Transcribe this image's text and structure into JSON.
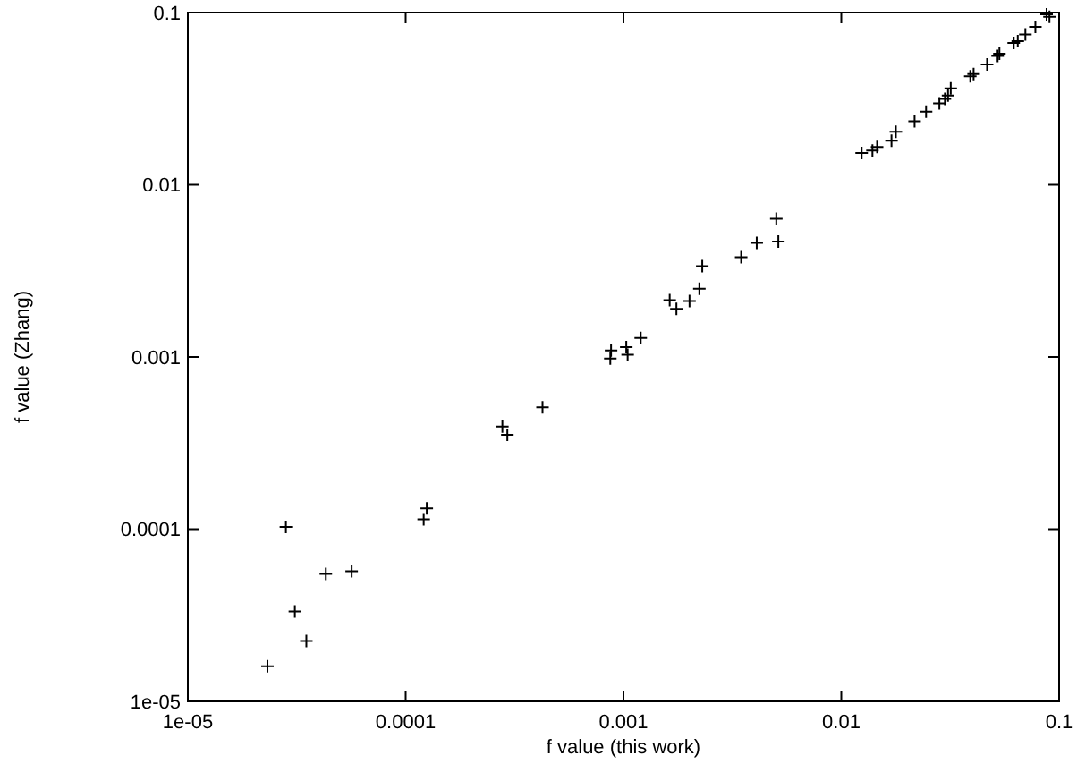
{
  "chart_data": {
    "type": "scatter",
    "xlabel": "f value (this work)",
    "ylabel": "f value (Zhang)",
    "log": "xy",
    "grid": false,
    "marker": "cross",
    "xlim": [
      1e-05,
      0.1
    ],
    "ylim": [
      1e-05,
      0.1
    ],
    "xticks": [
      {
        "value": 1e-05,
        "label": "1e-05"
      },
      0.0001,
      0.001,
      0.01,
      0.1
    ],
    "yticks": [
      {
        "value": 1e-05,
        "label": "1e-05"
      },
      0.0001,
      0.001,
      0.01,
      0.1
    ],
    "series": [
      {
        "color": "#000000",
        "x": [
          2.82e-05,
          3.1e-05,
          3.5e-05,
          2.32e-05,
          4.3e-05,
          5.65e-05,
          0.000121,
          0.000125,
          0.000278,
          0.000293,
          0.000425,
          0.000877,
          0.00087,
          0.00103,
          0.001045,
          0.0012,
          0.00163,
          0.00175,
          0.00201,
          0.00223,
          0.0023,
          0.00347,
          0.00409,
          0.00503,
          0.00514,
          0.0124,
          0.0139,
          0.0146,
          0.017,
          0.0178,
          0.0217,
          0.0245,
          0.0282,
          0.0299,
          0.0309,
          0.0318,
          0.0391,
          0.0405,
          0.0467,
          0.0522,
          0.0532,
          0.0619,
          0.0646,
          0.07,
          0.0778,
          0.0876,
          0.0903
        ],
        "values": [
          0.000103,
          3.33e-05,
          2.24e-05,
          1.6e-05,
          5.5e-05,
          5.7e-05,
          0.000114,
          0.000132,
          0.000395,
          0.000353,
          0.00051,
          0.00109,
          0.00098,
          0.00114,
          0.00103,
          0.00129,
          0.00214,
          0.0019,
          0.00211,
          0.00249,
          0.00337,
          0.0038,
          0.0046,
          0.00634,
          0.00468,
          0.0153,
          0.0158,
          0.0166,
          0.018,
          0.0203,
          0.0234,
          0.0266,
          0.0297,
          0.0315,
          0.033,
          0.0363,
          0.0426,
          0.044,
          0.05,
          0.056,
          0.0577,
          0.0665,
          0.0682,
          0.0745,
          0.0826,
          0.0977,
          0.0946
        ]
      }
    ]
  }
}
